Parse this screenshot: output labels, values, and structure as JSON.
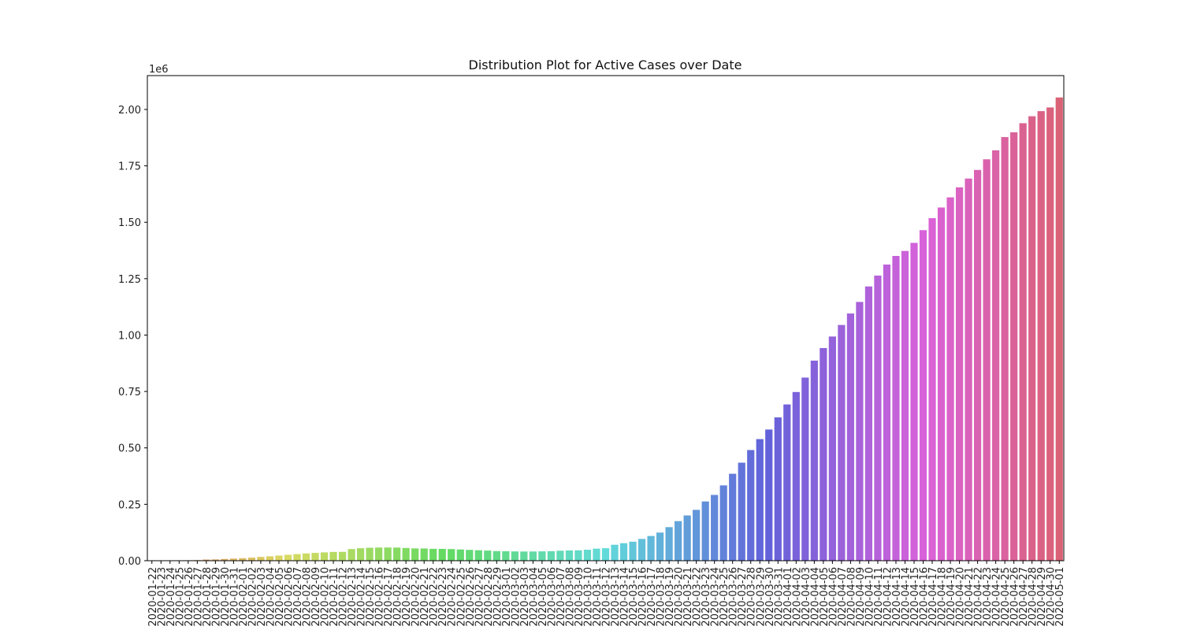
{
  "chart_data": {
    "type": "bar",
    "title": "Distribution Plot for Active Cases over Date",
    "xlabel": "",
    "ylabel": "",
    "y_offset_label": "1e6",
    "ylim": [
      0,
      2.15
    ],
    "y_ticks": [
      0.0,
      0.25,
      0.5,
      0.75,
      1.0,
      1.25,
      1.5,
      1.75,
      2.0
    ],
    "y_tick_labels": [
      "0.00",
      "0.25",
      "0.50",
      "0.75",
      "1.00",
      "1.25",
      "1.50",
      "1.75",
      "2.00"
    ],
    "grid": false,
    "legend": "none",
    "categories": [
      "2020-01-22",
      "2020-01-23",
      "2020-01-24",
      "2020-01-25",
      "2020-01-26",
      "2020-01-27",
      "2020-01-28",
      "2020-01-29",
      "2020-01-30",
      "2020-01-31",
      "2020-02-01",
      "2020-02-02",
      "2020-02-03",
      "2020-02-04",
      "2020-02-05",
      "2020-02-06",
      "2020-02-07",
      "2020-02-08",
      "2020-02-09",
      "2020-02-10",
      "2020-02-11",
      "2020-02-12",
      "2020-02-13",
      "2020-02-14",
      "2020-02-15",
      "2020-02-16",
      "2020-02-17",
      "2020-02-18",
      "2020-02-19",
      "2020-02-20",
      "2020-02-21",
      "2020-02-22",
      "2020-02-23",
      "2020-02-24",
      "2020-02-25",
      "2020-02-26",
      "2020-02-27",
      "2020-02-28",
      "2020-02-29",
      "2020-03-01",
      "2020-03-02",
      "2020-03-03",
      "2020-03-04",
      "2020-03-05",
      "2020-03-06",
      "2020-03-07",
      "2020-03-08",
      "2020-03-09",
      "2020-03-10",
      "2020-03-11",
      "2020-03-12",
      "2020-03-13",
      "2020-03-14",
      "2020-03-15",
      "2020-03-16",
      "2020-03-17",
      "2020-03-18",
      "2020-03-19",
      "2020-03-20",
      "2020-03-21",
      "2020-03-22",
      "2020-03-23",
      "2020-03-24",
      "2020-03-25",
      "2020-03-26",
      "2020-03-27",
      "2020-03-28",
      "2020-03-29",
      "2020-03-30",
      "2020-03-31",
      "2020-04-01",
      "2020-04-02",
      "2020-04-03",
      "2020-04-04",
      "2020-04-05",
      "2020-04-06",
      "2020-04-07",
      "2020-04-08",
      "2020-04-09",
      "2020-04-10",
      "2020-04-11",
      "2020-04-12",
      "2020-04-13",
      "2020-04-14",
      "2020-04-15",
      "2020-04-16",
      "2020-04-17",
      "2020-04-18",
      "2020-04-19",
      "2020-04-20",
      "2020-04-21",
      "2020-04-22",
      "2020-04-23",
      "2020-04-24",
      "2020-04-25",
      "2020-04-26",
      "2020-04-27",
      "2020-04-28",
      "2020-04-29",
      "2020-04-30",
      "2020-05-01"
    ],
    "values": [
      0.0005,
      0.0006,
      0.0008,
      0.0013,
      0.002,
      0.0027,
      0.005,
      0.0057,
      0.0076,
      0.0093,
      0.0111,
      0.0136,
      0.0167,
      0.0195,
      0.0227,
      0.0262,
      0.0293,
      0.0323,
      0.0346,
      0.0369,
      0.0388,
      0.0392,
      0.0517,
      0.0553,
      0.0574,
      0.0583,
      0.0585,
      0.0581,
      0.0564,
      0.0544,
      0.0542,
      0.0527,
      0.0524,
      0.0515,
      0.0497,
      0.048,
      0.0463,
      0.0449,
      0.0425,
      0.0418,
      0.0412,
      0.0408,
      0.0409,
      0.0415,
      0.0422,
      0.0443,
      0.0454,
      0.046,
      0.0485,
      0.0535,
      0.0554,
      0.0707,
      0.0776,
      0.0842,
      0.0966,
      0.1096,
      0.1248,
      0.1488,
      0.1755,
      0.2005,
      0.2254,
      0.2625,
      0.2915,
      0.3338,
      0.3853,
      0.4344,
      0.4905,
      0.5389,
      0.5814,
      0.6352,
      0.6926,
      0.7476,
      0.8116,
      0.8867,
      0.9425,
      0.9936,
      1.0448,
      1.0957,
      1.1469,
      1.2155,
      1.2637,
      1.3126,
      1.3507,
      1.3728,
      1.4087,
      1.4651,
      1.5182,
      1.5654,
      1.6103,
      1.6548,
      1.6938,
      1.7319,
      1.7791,
      1.8189,
      1.8775,
      1.8986,
      1.9391,
      1.9699,
      1.9925,
      2.0089,
      2.0531
    ]
  }
}
